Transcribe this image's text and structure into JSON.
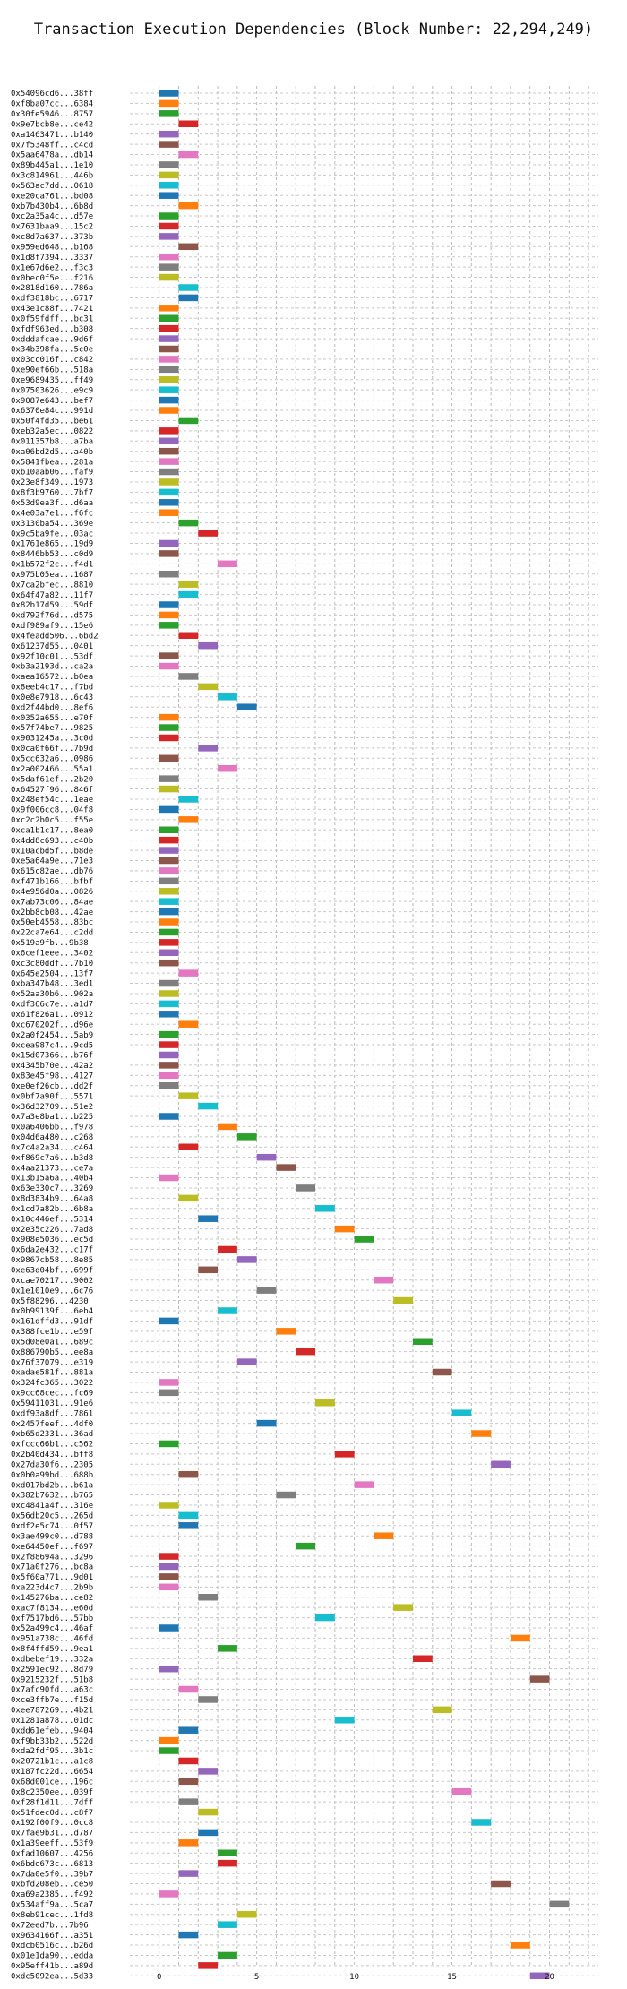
{
  "chart_data": {
    "type": "bar",
    "orientation": "horizontal-gantt",
    "title": "Transaction Execution Dependencies (Block Number: 22,294,249)",
    "xlabel": "",
    "ylabel": "",
    "xlim": [
      -1.5,
      22.5
    ],
    "xticks": [
      0,
      5,
      10,
      15,
      20
    ],
    "grid": true,
    "bar_length": 1,
    "palette": [
      "#1f77b4",
      "#ff7f0e",
      "#2ca02c",
      "#d62728",
      "#9467bd",
      "#8c564b",
      "#e377c2",
      "#7f7f7f",
      "#bcbd22",
      "#17becf"
    ],
    "rows": [
      {
        "label": "0x54096cd6...38ff",
        "start": 0
      },
      {
        "label": "0xf8ba07cc...6384",
        "start": 0
      },
      {
        "label": "0x30fe5946...8757",
        "start": 0
      },
      {
        "label": "0x9e7bcb8e...ce42",
        "start": 1
      },
      {
        "label": "0xa1463471...b140",
        "start": 0
      },
      {
        "label": "0x7f5348ff...c4cd",
        "start": 0
      },
      {
        "label": "0x5aa6478a...db14",
        "start": 1
      },
      {
        "label": "0x89b445a1...1e10",
        "start": 0
      },
      {
        "label": "0x3c814961...446b",
        "start": 0
      },
      {
        "label": "0x563ac7dd...0618",
        "start": 0
      },
      {
        "label": "0xe20ca761...bd08",
        "start": 0
      },
      {
        "label": "0xb7b430b4...6b8d",
        "start": 1
      },
      {
        "label": "0xc2a35a4c...d57e",
        "start": 0
      },
      {
        "label": "0x7631baa9...15c2",
        "start": 0
      },
      {
        "label": "0xc8d7a637...373b",
        "start": 0
      },
      {
        "label": "0x959ed648...b168",
        "start": 1
      },
      {
        "label": "0x1d8f7394...3337",
        "start": 0
      },
      {
        "label": "0x1e67d6e2...f3c3",
        "start": 0
      },
      {
        "label": "0x0bec0f5e...f216",
        "start": 0
      },
      {
        "label": "0x2818d160...786a",
        "start": 1
      },
      {
        "label": "0xdf3818bc...6717",
        "start": 1
      },
      {
        "label": "0x43e1c88f...7421",
        "start": 0
      },
      {
        "label": "0x0f59fdff...bc31",
        "start": 0
      },
      {
        "label": "0xfdf963ed...b308",
        "start": 0
      },
      {
        "label": "0xdddafcae...9d6f",
        "start": 0
      },
      {
        "label": "0x34b398fa...5c0e",
        "start": 0
      },
      {
        "label": "0x03cc016f...c842",
        "start": 0
      },
      {
        "label": "0xe90ef66b...518a",
        "start": 0
      },
      {
        "label": "0xe9689435...ff49",
        "start": 0
      },
      {
        "label": "0x07503626...e9c9",
        "start": 0
      },
      {
        "label": "0x9087e643...bef7",
        "start": 0
      },
      {
        "label": "0x6370e84c...991d",
        "start": 0
      },
      {
        "label": "0x50f4fd35...be61",
        "start": 1
      },
      {
        "label": "0xeb32a5ec...0822",
        "start": 0
      },
      {
        "label": "0x011357b8...a7ba",
        "start": 0
      },
      {
        "label": "0xa06bd2d5...a40b",
        "start": 0
      },
      {
        "label": "0x5841fbea...281a",
        "start": 0
      },
      {
        "label": "0xb10aab06...faf9",
        "start": 0
      },
      {
        "label": "0x23e8f349...1973",
        "start": 0
      },
      {
        "label": "0x8f3b9760...7bf7",
        "start": 0
      },
      {
        "label": "0x53d9ea3f...d6aa",
        "start": 0
      },
      {
        "label": "0x4e03a7e1...f6fc",
        "start": 0
      },
      {
        "label": "0x3130ba54...369e",
        "start": 1
      },
      {
        "label": "0x9c5ba9fe...03ac",
        "start": 2
      },
      {
        "label": "0x1761e865...19d9",
        "start": 0
      },
      {
        "label": "0x8446bb53...c0d9",
        "start": 0
      },
      {
        "label": "0x1b572f2c...f4d1",
        "start": 3
      },
      {
        "label": "0x975b05ea...1687",
        "start": 0
      },
      {
        "label": "0x7ca2bfec...8810",
        "start": 1
      },
      {
        "label": "0x64f47a82...11f7",
        "start": 1
      },
      {
        "label": "0x82b17d59...59df",
        "start": 0
      },
      {
        "label": "0xd792f76d...d575",
        "start": 0
      },
      {
        "label": "0xdf989af9...15e6",
        "start": 0
      },
      {
        "label": "0x4feadd506...6bd2",
        "start": 1
      },
      {
        "label": "0x61237d55...0401",
        "start": 2
      },
      {
        "label": "0x92f10c01...53df",
        "start": 0
      },
      {
        "label": "0xb3a2193d...ca2a",
        "start": 0
      },
      {
        "label": "0xaea16572...b0ea",
        "start": 1
      },
      {
        "label": "0x8eeb4c17...f7bd",
        "start": 2
      },
      {
        "label": "0x0e8e7918...6c43",
        "start": 3
      },
      {
        "label": "0xd2f44bd0...8ef6",
        "start": 4
      },
      {
        "label": "0x0352a655...e70f",
        "start": 0
      },
      {
        "label": "0x57f74be7...9825",
        "start": 0
      },
      {
        "label": "0x9031245a...3c0d",
        "start": 0
      },
      {
        "label": "0x0ca0f66f...7b9d",
        "start": 2
      },
      {
        "label": "0x5cc632a6...0986",
        "start": 0
      },
      {
        "label": "0x2a002466...55a1",
        "start": 3
      },
      {
        "label": "0x5daf61ef...2b20",
        "start": 0
      },
      {
        "label": "0x64527f96...846f",
        "start": 0
      },
      {
        "label": "0x248ef54c...1eae",
        "start": 1
      },
      {
        "label": "0x9f006cc8...04f8",
        "start": 0
      },
      {
        "label": "0xc2c2b0c5...f55e",
        "start": 1
      },
      {
        "label": "0xca1b1c17...8ea0",
        "start": 0
      },
      {
        "label": "0x4dd8c693...c40b",
        "start": 0
      },
      {
        "label": "0x10acbd5f...b8de",
        "start": 0
      },
      {
        "label": "0xe5a64a9e...71e3",
        "start": 0
      },
      {
        "label": "0x615c82ae...db76",
        "start": 0
      },
      {
        "label": "0xf471b166...bfbf",
        "start": 0
      },
      {
        "label": "0x4e956d0a...0826",
        "start": 0
      },
      {
        "label": "0x7ab73c06...84ae",
        "start": 0
      },
      {
        "label": "0x2bb8cb08...42ae",
        "start": 0
      },
      {
        "label": "0x50eb4558...83bc",
        "start": 0
      },
      {
        "label": "0x22ca7e64...c2dd",
        "start": 0
      },
      {
        "label": "0x519a9fb...9b38",
        "start": 0
      },
      {
        "label": "0x6cef1eee...3402",
        "start": 0
      },
      {
        "label": "0xc3c80ddf...7b10",
        "start": 0
      },
      {
        "label": "0x645e2504...13f7",
        "start": 1
      },
      {
        "label": "0xba347b48...3ed1",
        "start": 0
      },
      {
        "label": "0x52aa30b6...902a",
        "start": 0
      },
      {
        "label": "0xdf366c7e...a1d7",
        "start": 0
      },
      {
        "label": "0x61f826a1...0912",
        "start": 0
      },
      {
        "label": "0xc670202f...d96e",
        "start": 1
      },
      {
        "label": "0x2a0f2454...5ab9",
        "start": 0
      },
      {
        "label": "0xcea987c4...9cd5",
        "start": 0
      },
      {
        "label": "0x15d07366...b76f",
        "start": 0
      },
      {
        "label": "0x4345b70e...42a2",
        "start": 0
      },
      {
        "label": "0x83e45f98...4127",
        "start": 0
      },
      {
        "label": "0xe0ef26cb...dd2f",
        "start": 0
      },
      {
        "label": "0x0bf7a90f...5571",
        "start": 1
      },
      {
        "label": "0x36d32709...51e2",
        "start": 2
      },
      {
        "label": "0x7a3e8ba1...b225",
        "start": 0
      },
      {
        "label": "0x0a6406bb...f978",
        "start": 3
      },
      {
        "label": "0x04d6a480...c268",
        "start": 4
      },
      {
        "label": "0x7c4a2a34...c464",
        "start": 1
      },
      {
        "label": "0xf869c7a6...b3d8",
        "start": 5
      },
      {
        "label": "0x4aa21373...ce7a",
        "start": 6
      },
      {
        "label": "0x13b15a6a...40b4",
        "start": 0
      },
      {
        "label": "0x63e330c7...3269",
        "start": 7
      },
      {
        "label": "0x8d3834b9...64a8",
        "start": 1
      },
      {
        "label": "0x1cd7a82b...6b8a",
        "start": 8
      },
      {
        "label": "0x10c446ef...5314",
        "start": 2
      },
      {
        "label": "0x2e35c226...7ad8",
        "start": 9
      },
      {
        "label": "0x908e5036...ec5d",
        "start": 10
      },
      {
        "label": "0x6da2e432...c17f",
        "start": 3
      },
      {
        "label": "0x9867cb58...8e85",
        "start": 4
      },
      {
        "label": "0xe63d04bf...699f",
        "start": 2
      },
      {
        "label": "0xcae70217...9002",
        "start": 11
      },
      {
        "label": "0x1e1010e9...6c76",
        "start": 5
      },
      {
        "label": "0x5f88296...4230",
        "start": 12
      },
      {
        "label": "0x0b99139f...6eb4",
        "start": 3
      },
      {
        "label": "0x161dffd3...91df",
        "start": 0
      },
      {
        "label": "0x388fce1b...e59f",
        "start": 6
      },
      {
        "label": "0x5d08e0a1...689c",
        "start": 13
      },
      {
        "label": "0x886790b5...ee8a",
        "start": 7
      },
      {
        "label": "0x76f37079...e319",
        "start": 4
      },
      {
        "label": "0xadae581f...881a",
        "start": 14
      },
      {
        "label": "0x324fc365...3022",
        "start": 0
      },
      {
        "label": "0x9cc68cec...fc69",
        "start": 0
      },
      {
        "label": "0x59411031...91e6",
        "start": 8
      },
      {
        "label": "0xdf93a8df...7861",
        "start": 15
      },
      {
        "label": "0x2457feef...4df0",
        "start": 5
      },
      {
        "label": "0xb65d2331...36ad",
        "start": 16
      },
      {
        "label": "0xfccc66b1...c562",
        "start": 0
      },
      {
        "label": "0x2b40d434...bff8",
        "start": 9
      },
      {
        "label": "0x27da30f6...2305",
        "start": 17
      },
      {
        "label": "0x0b0a99bd...688b",
        "start": 1
      },
      {
        "label": "0xd017bd2b...b61a",
        "start": 10
      },
      {
        "label": "0x382b7632...b765",
        "start": 6
      },
      {
        "label": "0xc4841a4f...316e",
        "start": 0
      },
      {
        "label": "0x56db20c5...265d",
        "start": 1
      },
      {
        "label": "0xdf2e5c74...0f57",
        "start": 1
      },
      {
        "label": "0x3ae499c0...d788",
        "start": 11
      },
      {
        "label": "0xe64450ef...f697",
        "start": 7
      },
      {
        "label": "0x2f88694a...3296",
        "start": 0
      },
      {
        "label": "0x71a0f276...bc8a",
        "start": 0
      },
      {
        "label": "0x5f60a771...9d01",
        "start": 0
      },
      {
        "label": "0xa223d4c7...2b9b",
        "start": 0
      },
      {
        "label": "0x145276ba...ce82",
        "start": 2
      },
      {
        "label": "0xac7f8134...e60d",
        "start": 12
      },
      {
        "label": "0xf7517bd6...57bb",
        "start": 8
      },
      {
        "label": "0x52a499c4...46af",
        "start": 0
      },
      {
        "label": "0x951a738c...46fd",
        "start": 18
      },
      {
        "label": "0x8f4ffd59...9ea1",
        "start": 3
      },
      {
        "label": "0xdbebef19...332a",
        "start": 13
      },
      {
        "label": "0x2591ec92...8d79",
        "start": 0
      },
      {
        "label": "0x9215232f...51b8",
        "start": 19
      },
      {
        "label": "0x7afc90fd...a63c",
        "start": 1
      },
      {
        "label": "0xce3ffb7e...f15d",
        "start": 2
      },
      {
        "label": "0xee787269...4b21",
        "start": 14
      },
      {
        "label": "0x1281a878...01dc",
        "start": 9
      },
      {
        "label": "0xdd61efeb...9404",
        "start": 1
      },
      {
        "label": "0xf9bb33b2...522d",
        "start": 0
      },
      {
        "label": "0xda2fdf95...3b1c",
        "start": 0
      },
      {
        "label": "0x20721b1c...a1c8",
        "start": 1
      },
      {
        "label": "0x187fc22d...6654",
        "start": 2
      },
      {
        "label": "0x68d001ce...196c",
        "start": 1
      },
      {
        "label": "0x8c2350ee...039f",
        "start": 15
      },
      {
        "label": "0xf28f1d11...7dff",
        "start": 1
      },
      {
        "label": "0x51fdec0d...c8f7",
        "start": 2
      },
      {
        "label": "0x192f00f9...0cc8",
        "start": 16
      },
      {
        "label": "0x7fae9b31...d787",
        "start": 2
      },
      {
        "label": "0x1a39eeff...53f9",
        "start": 1
      },
      {
        "label": "0xfad10607...4256",
        "start": 3
      },
      {
        "label": "0x6bde673c...6813",
        "start": 3
      },
      {
        "label": "0x7da0e5f0...39b7",
        "start": 1
      },
      {
        "label": "0xbfd208eb...ce50",
        "start": 17
      },
      {
        "label": "0xa69a2385...f492",
        "start": 0
      },
      {
        "label": "0x534aff9a...5ca7",
        "start": 20
      },
      {
        "label": "0x8eb91cec...1fd8",
        "start": 4
      },
      {
        "label": "0x72eed7b...7b96",
        "start": 3
      },
      {
        "label": "0x9634166f...a351",
        "start": 1
      },
      {
        "label": "0xdcb0516c...b26d",
        "start": 18
      },
      {
        "label": "0x01e1da90...edda",
        "start": 3
      },
      {
        "label": "0x95eff41b...a89d",
        "start": 2
      },
      {
        "label": "0xdc5092ea...5d33",
        "start": 19
      }
    ]
  }
}
